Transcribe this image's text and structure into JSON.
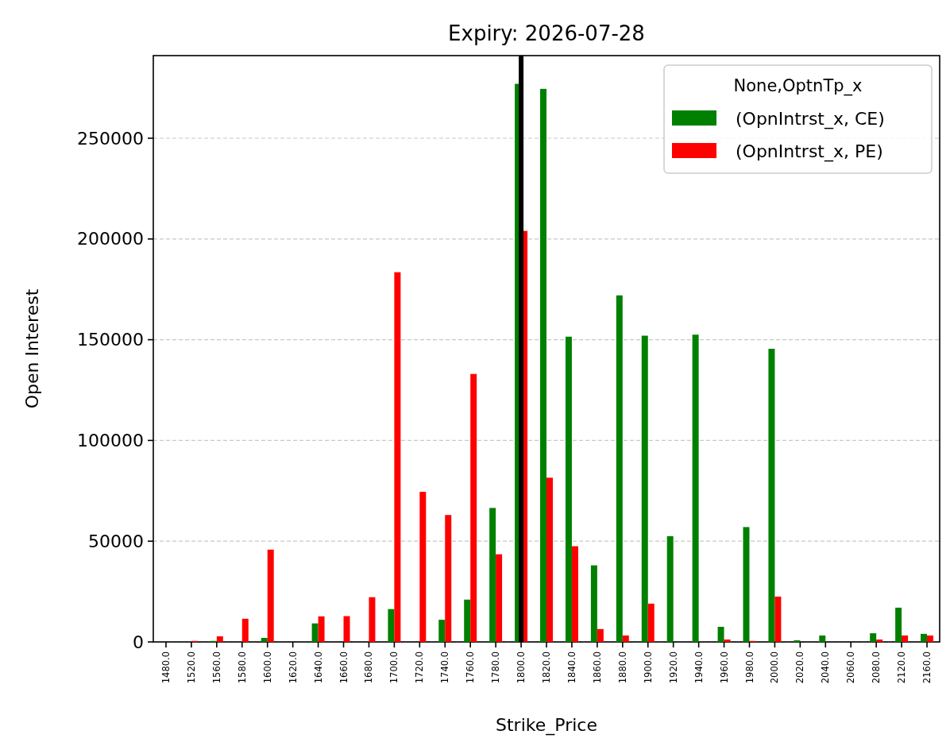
{
  "chart_data": {
    "type": "bar",
    "title": "Expiry: 2026-07-28",
    "xlabel": "Strike_Price",
    "ylabel": "Open Interest",
    "legend_title": "None,OptnTp_x",
    "categories": [
      "1480.0",
      "1520.0",
      "1560.0",
      "1580.0",
      "1600.0",
      "1620.0",
      "1640.0",
      "1660.0",
      "1680.0",
      "1700.0",
      "1720.0",
      "1740.0",
      "1760.0",
      "1780.0",
      "1800.0",
      "1820.0",
      "1840.0",
      "1860.0",
      "1880.0",
      "1900.0",
      "1920.0",
      "1940.0",
      "1960.0",
      "1980.0",
      "2000.0",
      "2020.0",
      "2040.0",
      "2060.0",
      "2080.0",
      "2120.0",
      "2160.0"
    ],
    "series": [
      {
        "name": "(OpnIntrst_x, CE)",
        "color": "#008000",
        "values": [
          0,
          0,
          500,
          0,
          2000,
          0,
          9200,
          0,
          0,
          16300,
          0,
          11000,
          21000,
          66500,
          277000,
          274500,
          151500,
          38000,
          172000,
          152000,
          52500,
          152500,
          7500,
          57000,
          145500,
          800,
          3200,
          0,
          4300,
          17000,
          4000
        ]
      },
      {
        "name": "(OpnIntrst_x, PE)",
        "color": "#ff0000",
        "values": [
          0,
          500,
          2800,
          11500,
          45800,
          0,
          12700,
          12800,
          22200,
          183500,
          74500,
          63000,
          133000,
          43500,
          204000,
          81500,
          47500,
          6400,
          3200,
          19000,
          0,
          0,
          1200,
          500,
          22500,
          0,
          0,
          0,
          1200,
          3200,
          3200
        ]
      }
    ],
    "ylim": [
      0,
      291000
    ],
    "yticks": [
      0,
      50000,
      100000,
      150000,
      200000,
      250000
    ],
    "grid": "y",
    "legend": "top right",
    "ref_lines": [
      {
        "axis": "x",
        "value": "1800.0",
        "color": "#000000"
      }
    ]
  }
}
